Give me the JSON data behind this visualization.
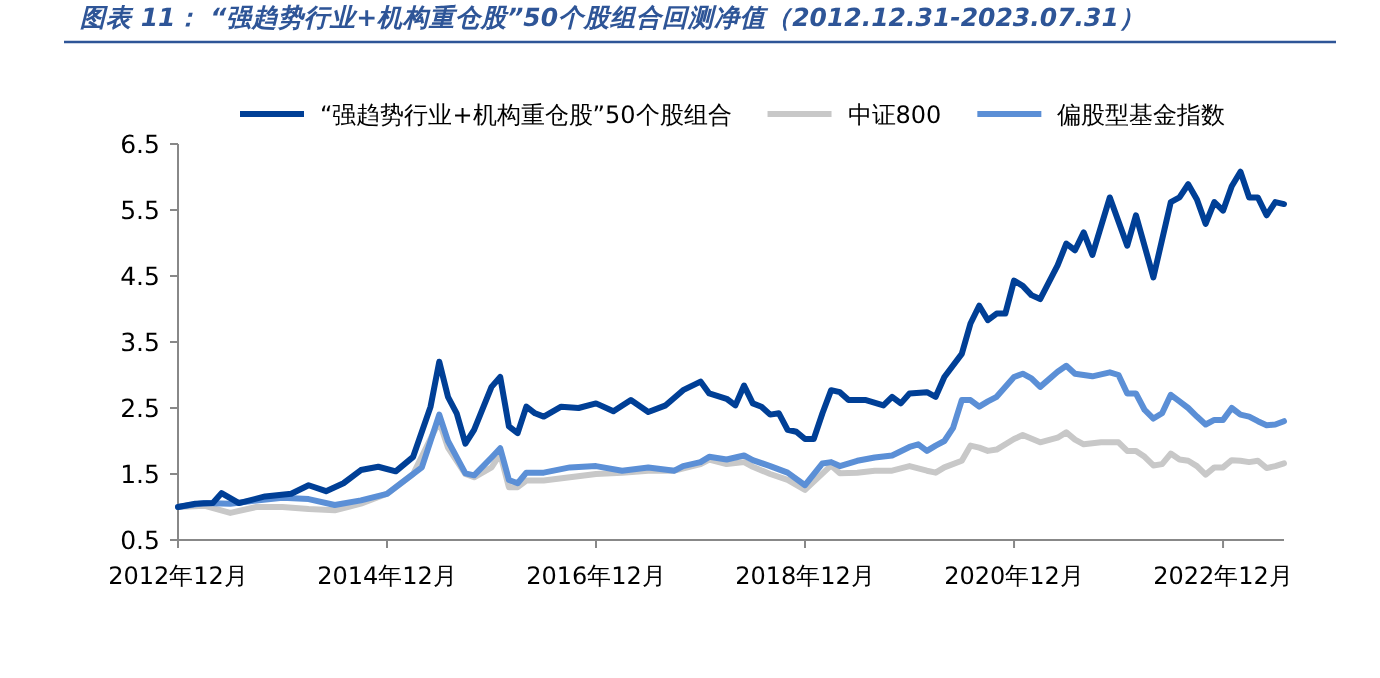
{
  "chart_data": {
    "type": "line",
    "title": "图表 11：  “强趋势行业+机构重仓股”50个股组合回测净值（2012.12.31-2023.07.31）",
    "legend": "top",
    "xlim": [
      "2012-12",
      "2023-07"
    ],
    "ylim": [
      0.5,
      6.5
    ],
    "xticks": [
      {
        "value": "2012-12",
        "label": "2012年12月"
      },
      {
        "value": "2014-12",
        "label": "2014年12月"
      },
      {
        "value": "2016-12",
        "label": "2016年12月"
      },
      {
        "value": "2018-12",
        "label": "2018年12月"
      },
      {
        "value": "2020-12",
        "label": "2020年12月"
      },
      {
        "value": "2022-12",
        "label": "2022年12月"
      }
    ],
    "yticks": [
      0.5,
      1.5,
      2.5,
      3.5,
      4.5,
      5.5,
      6.5
    ],
    "series": [
      {
        "name": "“强趋势行业+机构重仓股”50个股组合",
        "color": "#003f96",
        "x": [
          "2012-12",
          "2013-02",
          "2013-04",
          "2013-05",
          "2013-07",
          "2013-10",
          "2014-01",
          "2014-03",
          "2014-05",
          "2014-07",
          "2014-09",
          "2014-11",
          "2015-01",
          "2015-03",
          "2015-05",
          "2015-06",
          "2015-07",
          "2015-08",
          "2015-09",
          "2015-10",
          "2015-12",
          "2016-01",
          "2016-02",
          "2016-03",
          "2016-04",
          "2016-05",
          "2016-06",
          "2016-08",
          "2016-10",
          "2016-12",
          "2017-02",
          "2017-04",
          "2017-06",
          "2017-08",
          "2017-10",
          "2017-12",
          "2018-01",
          "2018-03",
          "2018-04",
          "2018-05",
          "2018-06",
          "2018-07",
          "2018-08",
          "2018-09",
          "2018-10",
          "2018-11",
          "2018-12",
          "2019-01",
          "2019-02",
          "2019-03",
          "2019-04",
          "2019-05",
          "2019-07",
          "2019-09",
          "2019-10",
          "2019-11",
          "2019-12",
          "2020-02",
          "2020-03",
          "2020-04",
          "2020-06",
          "2020-07",
          "2020-08",
          "2020-09",
          "2020-10",
          "2020-11",
          "2020-12",
          "2021-01",
          "2021-02",
          "2021-03",
          "2021-05",
          "2021-06",
          "2021-07",
          "2021-08",
          "2021-09",
          "2021-11",
          "2022-01",
          "2022-02",
          "2022-04",
          "2022-06",
          "2022-07",
          "2022-08",
          "2022-09",
          "2022-10",
          "2022-11",
          "2022-12",
          "2023-01",
          "2023-02",
          "2023-03",
          "2023-04",
          "2023-05",
          "2023-06",
          "2023-07"
        ],
        "values": [
          1.0,
          1.05,
          1.06,
          1.21,
          1.06,
          1.16,
          1.2,
          1.33,
          1.24,
          1.36,
          1.56,
          1.61,
          1.54,
          1.76,
          2.52,
          3.2,
          2.67,
          2.42,
          1.96,
          2.17,
          2.82,
          2.97,
          2.22,
          2.12,
          2.52,
          2.42,
          2.37,
          2.52,
          2.5,
          2.57,
          2.45,
          2.62,
          2.44,
          2.54,
          2.77,
          2.9,
          2.72,
          2.64,
          2.54,
          2.84,
          2.57,
          2.52,
          2.4,
          2.42,
          2.17,
          2.14,
          2.03,
          2.03,
          2.42,
          2.77,
          2.74,
          2.62,
          2.62,
          2.54,
          2.67,
          2.57,
          2.72,
          2.74,
          2.67,
          2.97,
          3.32,
          3.78,
          4.05,
          3.83,
          3.93,
          3.93,
          4.43,
          4.35,
          4.21,
          4.15,
          4.66,
          4.99,
          4.89,
          5.16,
          4.82,
          5.69,
          4.96,
          5.42,
          4.48,
          5.62,
          5.69,
          5.89,
          5.66,
          5.29,
          5.62,
          5.49,
          5.86,
          6.08,
          5.69,
          5.69,
          5.42,
          5.62,
          5.59
        ]
      },
      {
        "name": "中证800",
        "color": "#c8c8c8",
        "x": [
          "2012-12",
          "2013-03",
          "2013-06",
          "2013-09",
          "2013-12",
          "2014-03",
          "2014-06",
          "2014-09",
          "2014-12",
          "2015-03",
          "2015-06",
          "2015-07",
          "2015-09",
          "2015-10",
          "2015-12",
          "2016-01",
          "2016-02",
          "2016-03",
          "2016-04",
          "2016-06",
          "2016-09",
          "2016-12",
          "2017-03",
          "2017-06",
          "2017-09",
          "2017-12",
          "2018-01",
          "2018-03",
          "2018-05",
          "2018-06",
          "2018-08",
          "2018-10",
          "2018-12",
          "2019-03",
          "2019-04",
          "2019-06",
          "2019-08",
          "2019-10",
          "2019-12",
          "2020-02",
          "2020-03",
          "2020-04",
          "2020-06",
          "2020-07",
          "2020-08",
          "2020-09",
          "2020-10",
          "2020-12",
          "2021-01",
          "2021-03",
          "2021-05",
          "2021-06",
          "2021-07",
          "2021-08",
          "2021-10",
          "2021-12",
          "2022-01",
          "2022-02",
          "2022-03",
          "2022-04",
          "2022-05",
          "2022-06",
          "2022-07",
          "2022-08",
          "2022-09",
          "2022-10",
          "2022-11",
          "2022-12",
          "2023-01",
          "2023-02",
          "2023-03",
          "2023-04",
          "2023-05",
          "2023-06",
          "2023-07"
        ],
        "values": [
          1.0,
          1.02,
          0.91,
          1.0,
          1.0,
          0.97,
          0.95,
          1.05,
          1.2,
          1.5,
          2.3,
          1.9,
          1.5,
          1.45,
          1.6,
          1.8,
          1.3,
          1.3,
          1.4,
          1.4,
          1.45,
          1.5,
          1.52,
          1.55,
          1.55,
          1.65,
          1.72,
          1.65,
          1.68,
          1.61,
          1.5,
          1.41,
          1.26,
          1.63,
          1.51,
          1.52,
          1.55,
          1.55,
          1.62,
          1.55,
          1.52,
          1.6,
          1.7,
          1.93,
          1.9,
          1.85,
          1.87,
          2.03,
          2.09,
          1.98,
          2.05,
          2.13,
          2.02,
          1.95,
          1.98,
          1.98,
          1.85,
          1.85,
          1.76,
          1.63,
          1.65,
          1.81,
          1.72,
          1.7,
          1.62,
          1.49,
          1.6,
          1.6,
          1.71,
          1.7,
          1.68,
          1.7,
          1.59,
          1.62,
          1.66
        ]
      },
      {
        "name": "偏股型基金指数",
        "color": "#5b8fd6",
        "x": [
          "2012-12",
          "2013-03",
          "2013-06",
          "2013-09",
          "2013-12",
          "2014-03",
          "2014-06",
          "2014-09",
          "2014-12",
          "2015-02",
          "2015-04",
          "2015-06",
          "2015-07",
          "2015-09",
          "2015-10",
          "2015-12",
          "2016-01",
          "2016-02",
          "2016-03",
          "2016-04",
          "2016-06",
          "2016-09",
          "2016-12",
          "2017-03",
          "2017-06",
          "2017-09",
          "2017-10",
          "2017-12",
          "2018-01",
          "2018-03",
          "2018-05",
          "2018-06",
          "2018-08",
          "2018-10",
          "2018-12",
          "2019-02",
          "2019-03",
          "2019-04",
          "2019-06",
          "2019-08",
          "2019-10",
          "2019-12",
          "2020-01",
          "2020-02",
          "2020-03",
          "2020-04",
          "2020-05",
          "2020-06",
          "2020-07",
          "2020-08",
          "2020-09",
          "2020-10",
          "2020-12",
          "2021-01",
          "2021-02",
          "2021-03",
          "2021-05",
          "2021-06",
          "2021-07",
          "2021-09",
          "2021-11",
          "2021-12",
          "2022-01",
          "2022-02",
          "2022-03",
          "2022-04",
          "2022-05",
          "2022-06",
          "2022-07",
          "2022-08",
          "2022-09",
          "2022-10",
          "2022-11",
          "2022-12",
          "2023-01",
          "2023-02",
          "2023-03",
          "2023-04",
          "2023-05",
          "2023-06",
          "2023-07"
        ],
        "values": [
          1.0,
          1.06,
          1.05,
          1.1,
          1.14,
          1.12,
          1.03,
          1.1,
          1.2,
          1.4,
          1.6,
          2.4,
          2.0,
          1.51,
          1.48,
          1.75,
          1.89,
          1.41,
          1.36,
          1.52,
          1.52,
          1.6,
          1.62,
          1.55,
          1.6,
          1.55,
          1.62,
          1.68,
          1.76,
          1.72,
          1.78,
          1.71,
          1.62,
          1.52,
          1.33,
          1.66,
          1.68,
          1.62,
          1.7,
          1.75,
          1.78,
          1.91,
          1.95,
          1.85,
          1.93,
          2.0,
          2.2,
          2.62,
          2.62,
          2.52,
          2.6,
          2.67,
          2.97,
          3.02,
          2.95,
          2.82,
          3.05,
          3.14,
          3.02,
          2.98,
          3.04,
          3.0,
          2.72,
          2.72,
          2.47,
          2.34,
          2.42,
          2.7,
          2.6,
          2.5,
          2.37,
          2.25,
          2.32,
          2.32,
          2.5,
          2.4,
          2.37,
          2.3,
          2.24,
          2.25,
          2.3
        ]
      }
    ]
  }
}
